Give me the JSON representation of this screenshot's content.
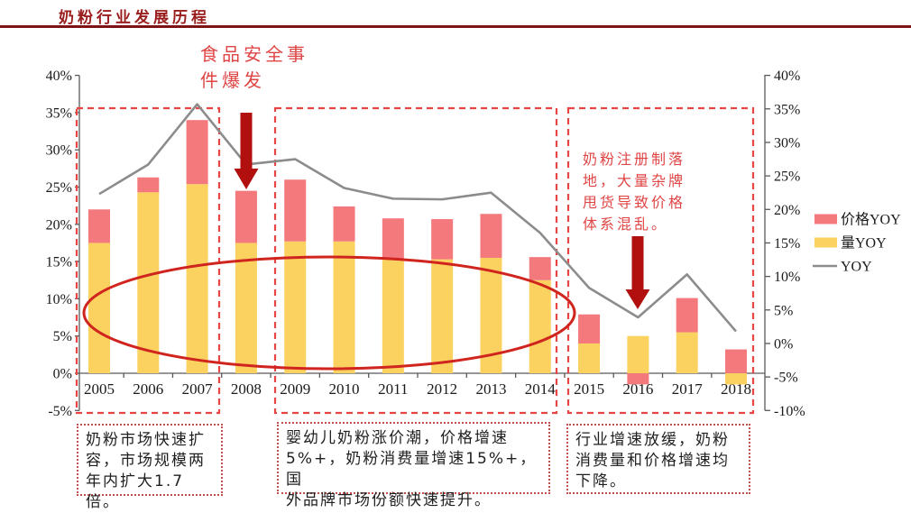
{
  "header": {
    "title": "奶粉行业发展历程"
  },
  "colors": {
    "price_bar": "#f4797d",
    "volume_bar": "#fbd15f",
    "yoy_line": "#8c8c8c",
    "dashed_box": "#e84444",
    "note_border": "#c0504d",
    "arrow": "#b20f0f",
    "annotation_text": "#e04545",
    "highlight_ellipse": "#d0241e",
    "title_text": "#9a1d1d",
    "axis": "#595959"
  },
  "annotations": {
    "food_safety": {
      "lines": [
        "食品安全事",
        "件爆发"
      ]
    },
    "registration": {
      "lines": [
        "奶粉注册制落",
        "地，大量杂牌",
        "甩货导致价格",
        "体系混乱。"
      ]
    }
  },
  "note_boxes": [
    {
      "lines": [
        "奶粉市场快速扩",
        "容，市场规模两",
        "年内扩大1.7倍。"
      ]
    },
    {
      "lines": [
        "婴幼儿奶粉涨价潮，价格增速",
        "5%+，奶粉消费量增速15%+，国",
        "外品牌市场份额快速提升。"
      ]
    },
    {
      "lines": [
        "行业增速放缓，奶粉",
        "消费量和价格增速均",
        "下降。"
      ]
    }
  ],
  "chart_data": {
    "type": "bar",
    "subtype": "stacked-bar-with-line",
    "categories": [
      "2005",
      "2006",
      "2007",
      "2008",
      "2009",
      "2010",
      "2011",
      "2012",
      "2013",
      "2014",
      "2015",
      "2016",
      "2017",
      "2018"
    ],
    "series": [
      {
        "name": "价格YOY",
        "type": "bar",
        "color": "#f4797d",
        "values": [
          4.5,
          2.0,
          8.6,
          7.0,
          8.3,
          4.7,
          5.5,
          5.4,
          5.9,
          3.1,
          3.9,
          -1.5,
          4.6,
          3.2
        ]
      },
      {
        "name": "量YOY",
        "type": "bar",
        "color": "#fbd15f",
        "values": [
          17.5,
          24.3,
          25.4,
          17.5,
          17.7,
          17.7,
          15.3,
          15.3,
          15.5,
          12.5,
          4.0,
          5.0,
          5.5,
          -1.5
        ]
      },
      {
        "name": "YOY",
        "type": "line",
        "color": "#8c8c8c",
        "axis": "right",
        "values": [
          22.3,
          26.7,
          35.7,
          26.7,
          27.5,
          23.2,
          21.6,
          21.5,
          22.5,
          16.5,
          8.3,
          3.9,
          10.3,
          1.8
        ]
      }
    ],
    "left_axis": {
      "min": -5,
      "max": 40,
      "step": 5,
      "ticks": [
        "40%",
        "35%",
        "30%",
        "25%",
        "20%",
        "15%",
        "10%",
        "5%",
        "0%",
        "-5%"
      ]
    },
    "right_axis": {
      "min": -10,
      "max": 40,
      "step": 5,
      "ticks": [
        "40%",
        "35%",
        "30%",
        "25%",
        "20%",
        "15%",
        "10%",
        "5%",
        "0%",
        "-5%",
        "-10%"
      ]
    },
    "grid": false,
    "legend_position": "right"
  }
}
